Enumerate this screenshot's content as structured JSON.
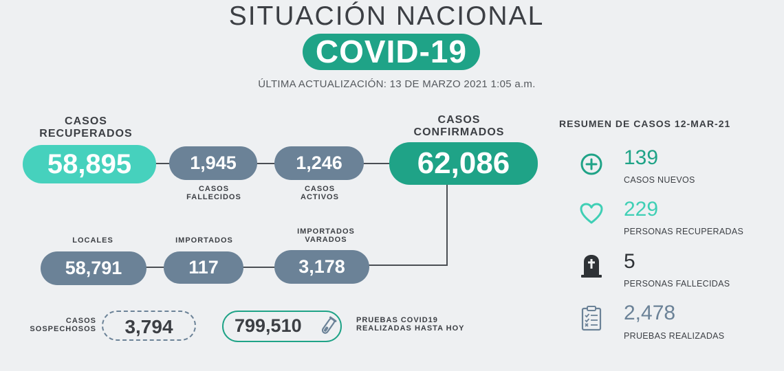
{
  "header": {
    "title": "SITUACIÓN NACIONAL",
    "badge": "COVID-19",
    "updated": "ÚLTIMA ACTUALIZACIÓN: 13 DE MARZO 2021 1:05 a.m."
  },
  "recovered": {
    "label_line1": "CASOS",
    "label_line2": "RECUPERADOS",
    "value": "58,895"
  },
  "deaths": {
    "value": "1,945",
    "label_line1": "CASOS",
    "label_line2": "FALLECIDOS"
  },
  "active": {
    "value": "1,246",
    "label_line1": "CASOS",
    "label_line2": "ACTIVOS"
  },
  "confirmed": {
    "label_line1": "CASOS",
    "label_line2": "CONFIRMADOS",
    "value": "62,086"
  },
  "local": {
    "label": "LOCALES",
    "value": "58,791"
  },
  "imported": {
    "label": "IMPORTADOS",
    "value": "117"
  },
  "stranded": {
    "label_line1": "IMPORTADOS",
    "label_line2": "VARADOS",
    "value": "3,178"
  },
  "suspected": {
    "label_line1": "CASOS",
    "label_line2": "SOSPECHOSOS",
    "value": "3,794"
  },
  "tests": {
    "value": "799,510",
    "label_line1": "PRUEBAS COVID19",
    "label_line2": "REALIZADAS HASTA HOY",
    "icon": "test-tube-icon"
  },
  "summary": {
    "title": "RESUMEN DE CASOS 12-MAR-21",
    "items": [
      {
        "icon": "plus-circle-icon",
        "value": "139",
        "label": "CASOS NUEVOS",
        "color": "#1fa387"
      },
      {
        "icon": "heart-icon",
        "value": "229",
        "label": "PERSONAS RECUPERADAS",
        "color": "#3fcfb5"
      },
      {
        "icon": "tombstone-icon",
        "value": "5",
        "label": "PERSONAS FALLECIDAS",
        "color": "#2e3236"
      },
      {
        "icon": "clipboard-checklist-icon",
        "value": "2,478",
        "label": "PRUEBAS REALIZADAS",
        "color": "#6b8297"
      }
    ]
  },
  "colors": {
    "teal_dark": "#1fa387",
    "teal_light": "#46d1bd",
    "slate": "#6b8297",
    "text": "#3c3f44",
    "background": "#eef0f2"
  }
}
